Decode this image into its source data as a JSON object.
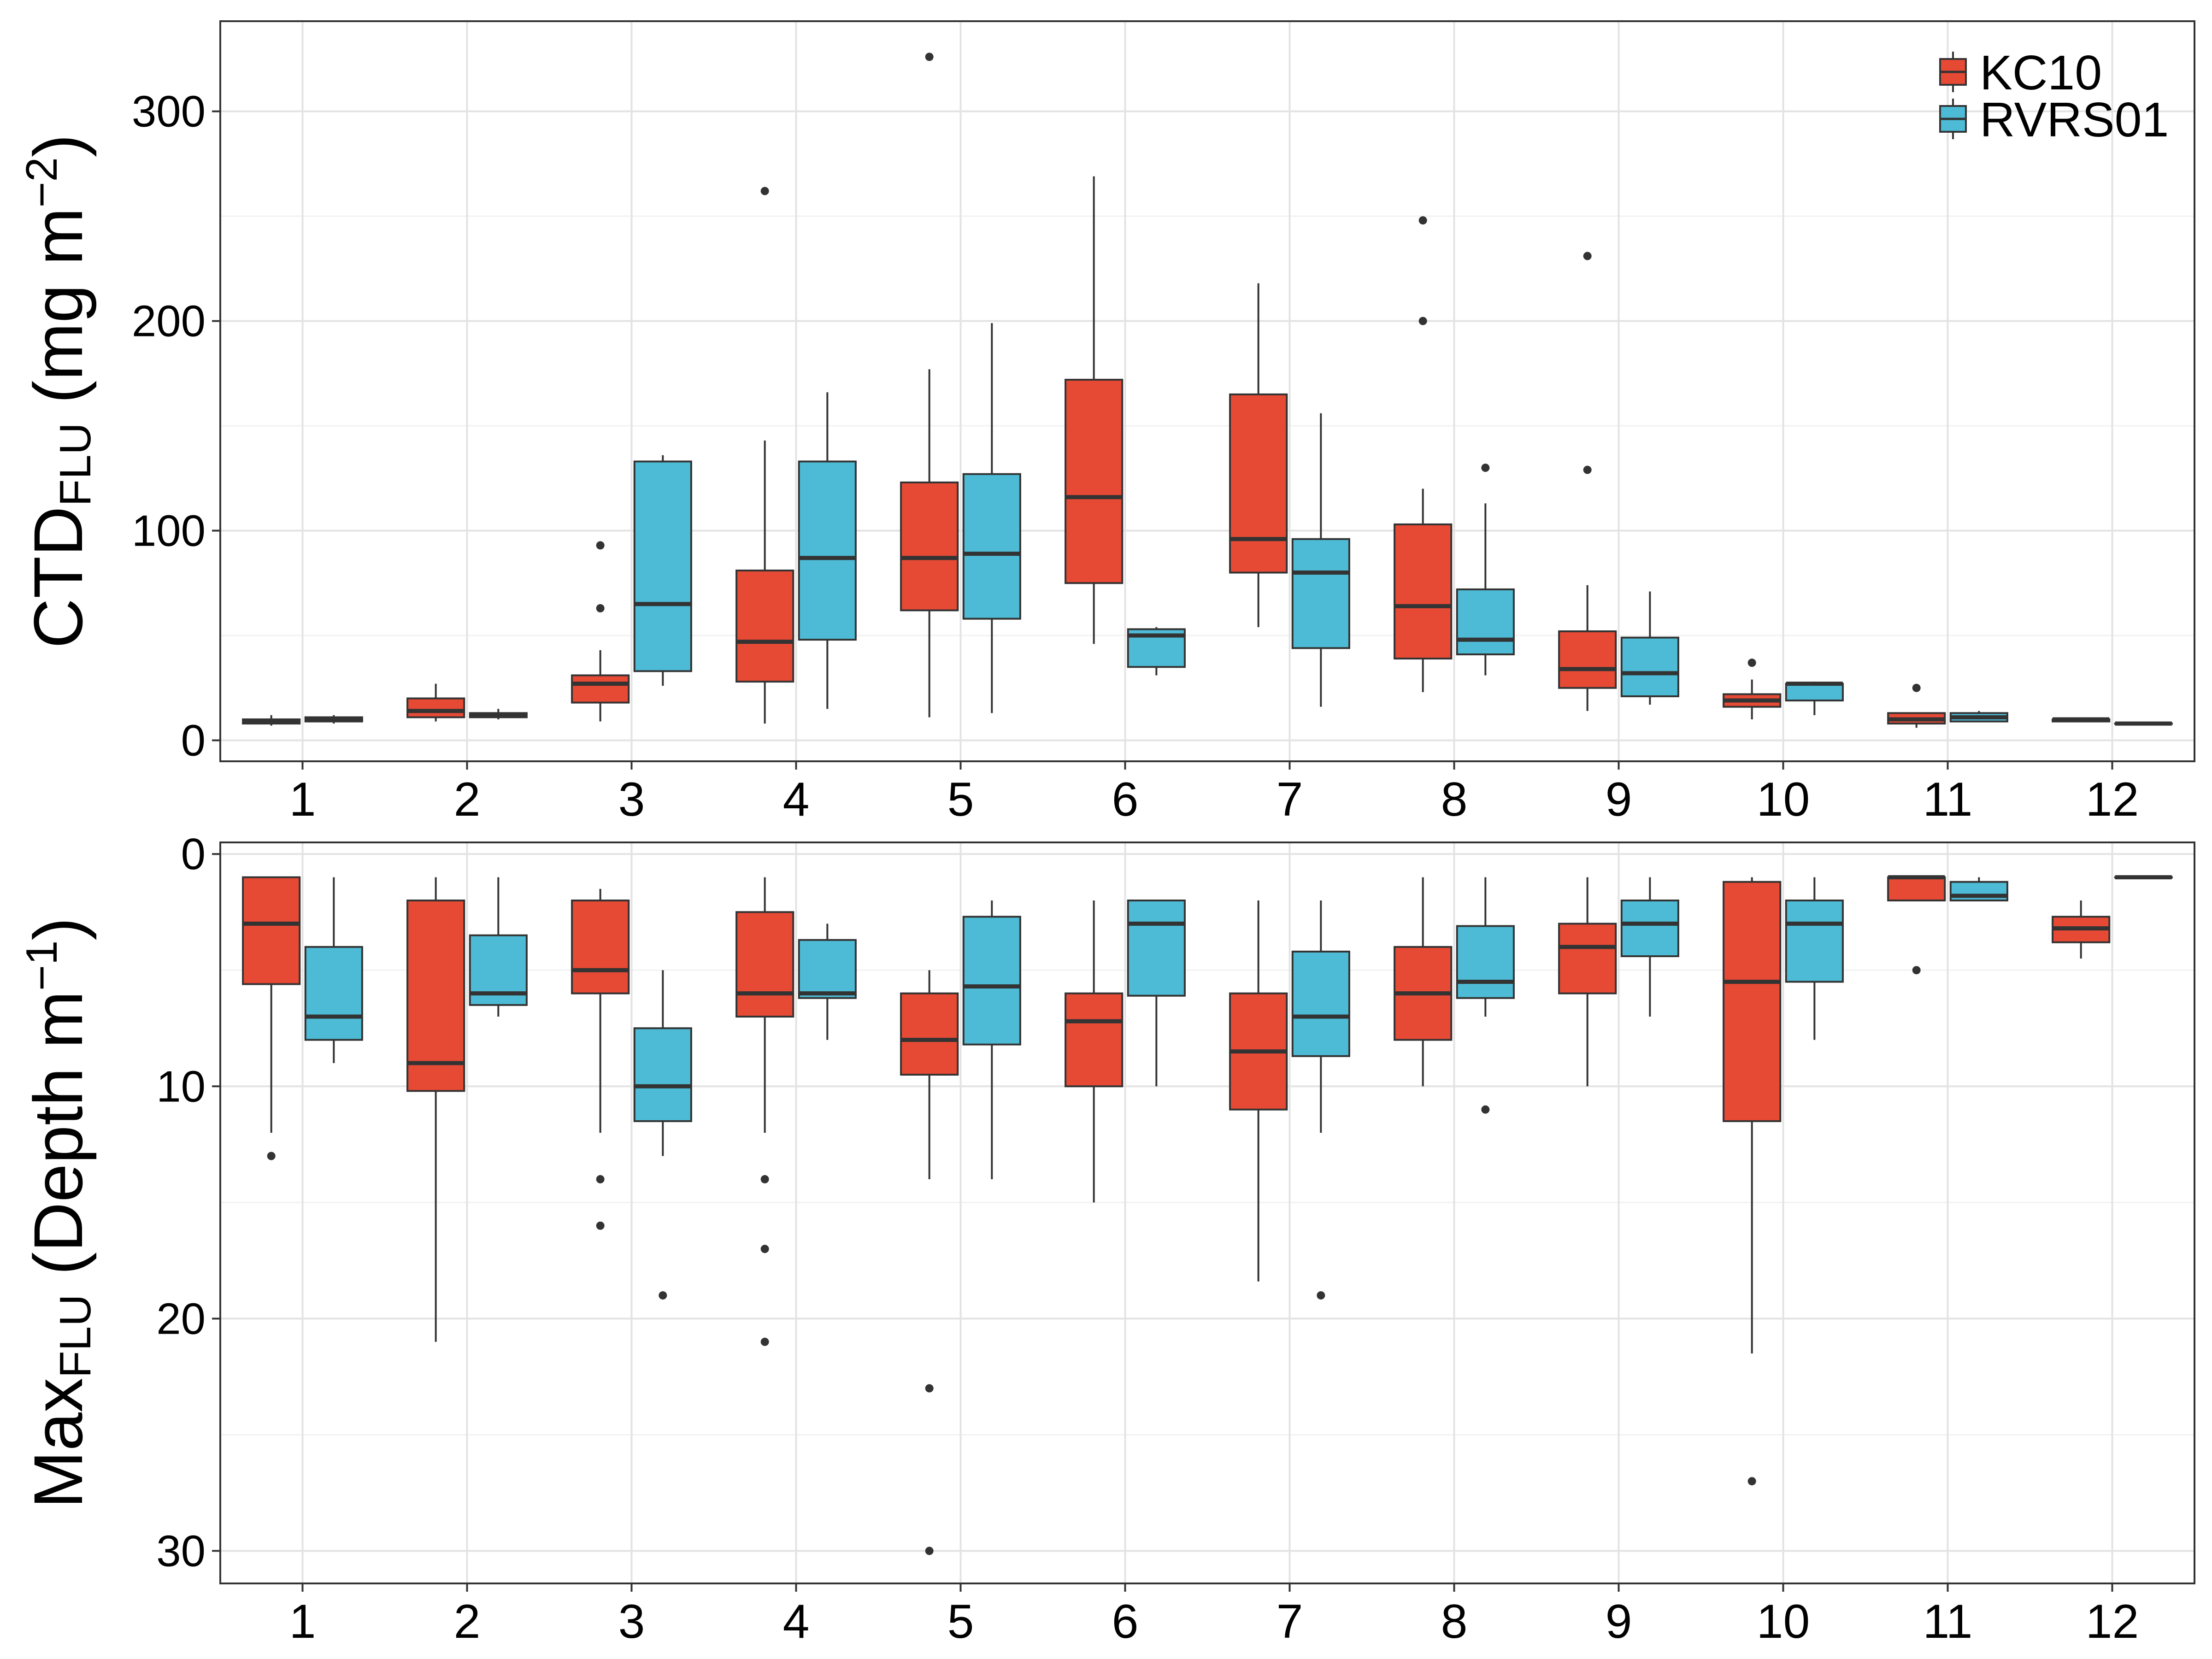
{
  "chart_data": [
    {
      "type": "boxplot",
      "ylabel_main": "CTD",
      "ylabel_sub": "FLU",
      "ylabel_unit_pre": " (mg m",
      "ylabel_unit_sup": "−2",
      "ylabel_unit_post": ")",
      "ylim": [
        -10,
        343
      ],
      "y_reversed": false,
      "y_ticks": [
        0,
        100,
        200,
        300
      ],
      "y_tick_labels": [
        "0",
        "100",
        "200",
        "300"
      ],
      "y_minor_ticks": [
        50,
        150,
        250
      ],
      "categories": [
        "1",
        "2",
        "3",
        "4",
        "5",
        "6",
        "7",
        "8",
        "9",
        "10",
        "11",
        "12"
      ],
      "grid": true,
      "legend_position": "top-right",
      "series": [
        {
          "name": "KC10",
          "color": "#E64A35",
          "boxes": [
            {
              "whislo": 7,
              "q1": 8,
              "med": 9,
              "q3": 10,
              "whishi": 12,
              "fliers": []
            },
            {
              "whislo": 9,
              "q1": 11,
              "med": 14,
              "q3": 20,
              "whishi": 27,
              "fliers": []
            },
            {
              "whislo": 9,
              "q1": 18,
              "med": 27,
              "q3": 31,
              "whishi": 43,
              "fliers": [
                63,
                93
              ]
            },
            {
              "whislo": 8,
              "q1": 28,
              "med": 47,
              "q3": 81,
              "whishi": 143,
              "fliers": [
                262
              ]
            },
            {
              "whislo": 11,
              "q1": 62,
              "med": 87,
              "q3": 123,
              "whishi": 177,
              "fliers": [
                326
              ]
            },
            {
              "whislo": 46,
              "q1": 75,
              "med": 116,
              "q3": 172,
              "whishi": 269,
              "fliers": []
            },
            {
              "whislo": 54,
              "q1": 80,
              "med": 96,
              "q3": 165,
              "whishi": 218,
              "fliers": []
            },
            {
              "whislo": 23,
              "q1": 39,
              "med": 64,
              "q3": 103,
              "whishi": 120,
              "fliers": [
                200,
                248
              ]
            },
            {
              "whislo": 14,
              "q1": 25,
              "med": 34,
              "q3": 52,
              "whishi": 74,
              "fliers": [
                129,
                231
              ]
            },
            {
              "whislo": 10,
              "q1": 16,
              "med": 19,
              "q3": 22,
              "whishi": 29,
              "fliers": [
                37
              ]
            },
            {
              "whislo": 6,
              "q1": 8,
              "med": 10,
              "q3": 13,
              "whishi": 13,
              "fliers": [
                25
              ]
            },
            {
              "whislo": 9,
              "q1": 9,
              "med": 10,
              "q3": 10,
              "whishi": 11,
              "fliers": []
            }
          ]
        },
        {
          "name": "RVRS01",
          "color": "#4DBBD5",
          "boxes": [
            {
              "whislo": 8,
              "q1": 9,
              "med": 10,
              "q3": 11,
              "whishi": 12,
              "fliers": []
            },
            {
              "whislo": 10,
              "q1": 11,
              "med": 12,
              "q3": 13,
              "whishi": 15,
              "fliers": []
            },
            {
              "whislo": 26,
              "q1": 33,
              "med": 65,
              "q3": 133,
              "whishi": 136,
              "fliers": []
            },
            {
              "whislo": 15,
              "q1": 48,
              "med": 87,
              "q3": 133,
              "whishi": 166,
              "fliers": []
            },
            {
              "whislo": 13,
              "q1": 58,
              "med": 89,
              "q3": 127,
              "whishi": 199,
              "fliers": []
            },
            {
              "whislo": 31,
              "q1": 35,
              "med": 50,
              "q3": 53,
              "whishi": 54,
              "fliers": []
            },
            {
              "whislo": 16,
              "q1": 44,
              "med": 80,
              "q3": 96,
              "whishi": 156,
              "fliers": []
            },
            {
              "whislo": 31,
              "q1": 41,
              "med": 48,
              "q3": 72,
              "whishi": 113,
              "fliers": [
                130
              ]
            },
            {
              "whislo": 17,
              "q1": 21,
              "med": 32,
              "q3": 49,
              "whishi": 71,
              "fliers": []
            },
            {
              "whislo": 12,
              "q1": 19,
              "med": 27,
              "q3": 27,
              "whishi": 28,
              "fliers": []
            },
            {
              "whislo": 9,
              "q1": 9,
              "med": 11,
              "q3": 13,
              "whishi": 14,
              "fliers": []
            },
            {
              "whislo": 8,
              "q1": 8,
              "med": 8,
              "q3": 8,
              "whishi": 8,
              "fliers": []
            }
          ]
        }
      ]
    },
    {
      "type": "boxplot",
      "ylabel_main": "Max",
      "ylabel_sub": "FLU",
      "ylabel_unit_pre": " (Depth m",
      "ylabel_unit_sup": "−1",
      "ylabel_unit_post": ")",
      "ylim": [
        -0.5,
        31.4
      ],
      "y_reversed": true,
      "y_ticks": [
        0,
        10,
        20,
        30
      ],
      "y_tick_labels": [
        "0",
        "10",
        "20",
        "30"
      ],
      "y_minor_ticks": [
        5,
        15,
        25
      ],
      "categories": [
        "1",
        "2",
        "3",
        "4",
        "5",
        "6",
        "7",
        "8",
        "9",
        "10",
        "11",
        "12"
      ],
      "grid": true,
      "series": [
        {
          "name": "KC10",
          "color": "#E64A35",
          "boxes": [
            {
              "whislo": 1,
              "q1": 1,
              "med": 3,
              "q3": 5.6,
              "whishi": 12,
              "fliers": [
                13
              ]
            },
            {
              "whislo": 1,
              "q1": 2,
              "med": 9,
              "q3": 10.2,
              "whishi": 21,
              "fliers": []
            },
            {
              "whislo": 1.5,
              "q1": 2,
              "med": 5,
              "q3": 6,
              "whishi": 12,
              "fliers": [
                14,
                16
              ]
            },
            {
              "whislo": 1,
              "q1": 2.5,
              "med": 6,
              "q3": 7,
              "whishi": 12,
              "fliers": [
                14,
                17,
                21
              ]
            },
            {
              "whislo": 5,
              "q1": 6,
              "med": 8,
              "q3": 9.5,
              "whishi": 14,
              "fliers": [
                23,
                30
              ]
            },
            {
              "whislo": 2,
              "q1": 6,
              "med": 7.2,
              "q3": 10,
              "whishi": 15,
              "fliers": []
            },
            {
              "whislo": 2,
              "q1": 6,
              "med": 8.5,
              "q3": 11,
              "whishi": 18.4,
              "fliers": []
            },
            {
              "whislo": 1,
              "q1": 4,
              "med": 6,
              "q3": 8,
              "whishi": 10,
              "fliers": []
            },
            {
              "whislo": 1,
              "q1": 3,
              "med": 4,
              "q3": 6,
              "whishi": 10,
              "fliers": []
            },
            {
              "whislo": 1,
              "q1": 1.2,
              "med": 5.5,
              "q3": 11.5,
              "whishi": 21.5,
              "fliers": [
                27
              ]
            },
            {
              "whislo": 1,
              "q1": 1,
              "med": 1,
              "q3": 2,
              "whishi": 2,
              "fliers": [
                5
              ]
            },
            {
              "whislo": 2,
              "q1": 2.7,
              "med": 3.2,
              "q3": 3.8,
              "whishi": 4.5,
              "fliers": []
            }
          ]
        },
        {
          "name": "RVRS01",
          "color": "#4DBBD5",
          "boxes": [
            {
              "whislo": 1,
              "q1": 4,
              "med": 7,
              "q3": 8,
              "whishi": 9,
              "fliers": []
            },
            {
              "whislo": 1,
              "q1": 3.5,
              "med": 6,
              "q3": 6.5,
              "whishi": 7,
              "fliers": []
            },
            {
              "whislo": 5,
              "q1": 7.5,
              "med": 10,
              "q3": 11.5,
              "whishi": 13,
              "fliers": [
                19
              ]
            },
            {
              "whislo": 3,
              "q1": 3.7,
              "med": 6,
              "q3": 6.2,
              "whishi": 8,
              "fliers": []
            },
            {
              "whislo": 2,
              "q1": 2.7,
              "med": 5.7,
              "q3": 8.2,
              "whishi": 14,
              "fliers": []
            },
            {
              "whislo": 2,
              "q1": 2,
              "med": 3,
              "q3": 6.1,
              "whishi": 10,
              "fliers": []
            },
            {
              "whislo": 2,
              "q1": 4.2,
              "med": 7,
              "q3": 8.7,
              "whishi": 12,
              "fliers": [
                19
              ]
            },
            {
              "whislo": 1,
              "q1": 3.1,
              "med": 5.5,
              "q3": 6.2,
              "whishi": 7,
              "fliers": [
                11
              ]
            },
            {
              "whislo": 1,
              "q1": 2,
              "med": 3,
              "q3": 4.4,
              "whishi": 7,
              "fliers": []
            },
            {
              "whislo": 1,
              "q1": 2,
              "med": 3,
              "q3": 5.5,
              "whishi": 8,
              "fliers": []
            },
            {
              "whislo": 1,
              "q1": 1.2,
              "med": 1.8,
              "q3": 2,
              "whishi": 2,
              "fliers": []
            },
            {
              "whislo": 1,
              "q1": 1,
              "med": 1,
              "q3": 1,
              "whishi": 1,
              "fliers": []
            }
          ]
        }
      ]
    }
  ]
}
